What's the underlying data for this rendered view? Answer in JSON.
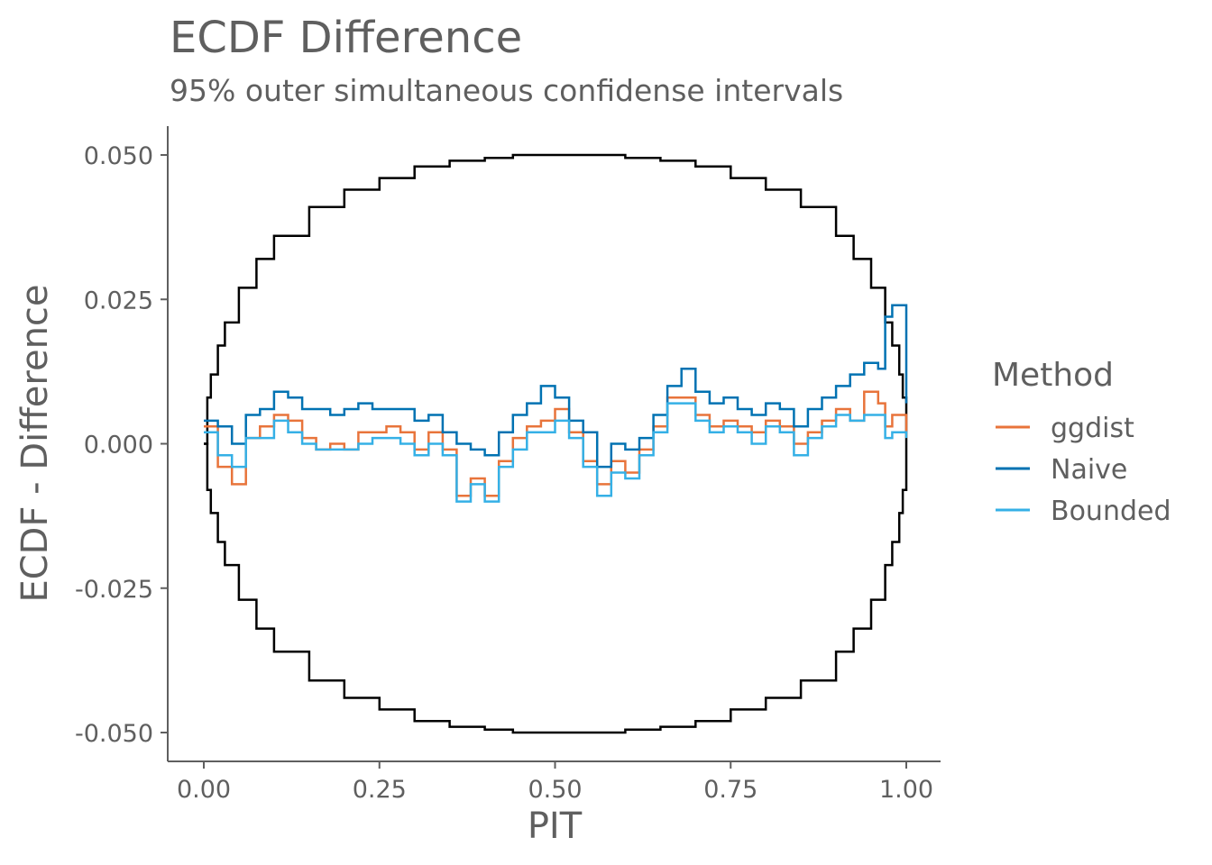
{
  "chart_data": {
    "type": "line",
    "title": "ECDF Difference",
    "subtitle": "95% outer simultaneous confidense intervals",
    "xlabel": "PIT",
    "ylabel": "ECDF - Difference",
    "xlim": [
      0,
      1
    ],
    "ylim": [
      -0.055,
      0.055
    ],
    "x_ticks": [
      0.0,
      0.25,
      0.5,
      0.75,
      1.0
    ],
    "x_tick_labels": [
      "0.00",
      "0.25",
      "0.50",
      "0.75",
      "1.00"
    ],
    "y_ticks": [
      -0.05,
      -0.025,
      0.0,
      0.025,
      0.05
    ],
    "y_tick_labels": [
      "-0.050",
      "-0.025",
      "0.000",
      "0.025",
      "0.050"
    ],
    "grid": false,
    "legend": {
      "title": "Method",
      "position": "right"
    },
    "envelope": {
      "color": "#000000",
      "description_shape": "stepped ellipse, ±0.05 at center, 0 at ends",
      "x": [
        0.0,
        0.005,
        0.01,
        0.02,
        0.03,
        0.05,
        0.075,
        0.1,
        0.15,
        0.2,
        0.25,
        0.3,
        0.35,
        0.4,
        0.44,
        0.5,
        0.56,
        0.6,
        0.65,
        0.7,
        0.75,
        0.8,
        0.85,
        0.9,
        0.925,
        0.95,
        0.97,
        0.98,
        0.99,
        0.995,
        1.0
      ],
      "upper": [
        0.0,
        0.008,
        0.012,
        0.017,
        0.021,
        0.027,
        0.032,
        0.036,
        0.041,
        0.044,
        0.046,
        0.048,
        0.049,
        0.0495,
        0.05,
        0.05,
        0.05,
        0.0495,
        0.049,
        0.048,
        0.046,
        0.044,
        0.041,
        0.036,
        0.032,
        0.027,
        0.021,
        0.017,
        0.012,
        0.008,
        0.0
      ],
      "lower": [
        0.0,
        -0.008,
        -0.012,
        -0.017,
        -0.021,
        -0.027,
        -0.032,
        -0.036,
        -0.041,
        -0.044,
        -0.046,
        -0.048,
        -0.049,
        -0.0495,
        -0.05,
        -0.05,
        -0.05,
        -0.0495,
        -0.049,
        -0.048,
        -0.046,
        -0.044,
        -0.041,
        -0.036,
        -0.032,
        -0.027,
        -0.021,
        -0.017,
        -0.012,
        -0.008,
        0.0
      ]
    },
    "x": [
      0.0,
      0.02,
      0.04,
      0.06,
      0.08,
      0.1,
      0.12,
      0.14,
      0.16,
      0.18,
      0.2,
      0.22,
      0.24,
      0.26,
      0.28,
      0.3,
      0.32,
      0.34,
      0.36,
      0.38,
      0.4,
      0.42,
      0.44,
      0.46,
      0.48,
      0.5,
      0.52,
      0.54,
      0.56,
      0.58,
      0.6,
      0.62,
      0.64,
      0.66,
      0.68,
      0.7,
      0.72,
      0.74,
      0.76,
      0.78,
      0.8,
      0.82,
      0.84,
      0.86,
      0.88,
      0.9,
      0.92,
      0.94,
      0.96,
      0.97,
      0.98,
      1.0
    ],
    "series": [
      {
        "name": "ggdist",
        "color": "#E8743B",
        "values": [
          0.003,
          -0.004,
          -0.007,
          0.001,
          0.003,
          0.005,
          0.004,
          0.001,
          -0.001,
          0.0,
          -0.001,
          0.002,
          0.002,
          0.003,
          0.002,
          -0.001,
          0.002,
          -0.001,
          -0.009,
          -0.006,
          -0.009,
          -0.003,
          0.001,
          0.003,
          0.004,
          0.006,
          0.002,
          -0.003,
          -0.007,
          -0.003,
          -0.005,
          -0.001,
          0.003,
          0.008,
          0.008,
          0.005,
          0.003,
          0.004,
          0.003,
          0.002,
          0.004,
          0.003,
          0.0,
          0.002,
          0.004,
          0.006,
          0.004,
          0.009,
          0.007,
          0.003,
          0.005,
          0.001
        ]
      },
      {
        "name": "Naive",
        "color": "#0072B2",
        "values": [
          0.004,
          0.003,
          0.0,
          0.005,
          0.006,
          0.009,
          0.008,
          0.006,
          0.006,
          0.005,
          0.006,
          0.007,
          0.006,
          0.006,
          0.006,
          0.004,
          0.005,
          0.002,
          0.0,
          -0.001,
          -0.002,
          0.002,
          0.005,
          0.007,
          0.01,
          0.008,
          0.004,
          0.002,
          -0.004,
          0.0,
          -0.001,
          0.001,
          0.005,
          0.01,
          0.013,
          0.009,
          0.007,
          0.008,
          0.006,
          0.005,
          0.007,
          0.006,
          0.003,
          0.006,
          0.008,
          0.01,
          0.012,
          0.014,
          0.013,
          0.022,
          0.024,
          0.007
        ]
      },
      {
        "name": "Bounded",
        "color": "#35B0E6",
        "values": [
          0.002,
          -0.002,
          -0.004,
          0.001,
          0.001,
          0.004,
          0.002,
          0.0,
          -0.001,
          -0.001,
          -0.001,
          0.0,
          0.001,
          0.001,
          0.0,
          -0.002,
          0.0,
          -0.002,
          -0.01,
          -0.007,
          -0.01,
          -0.004,
          -0.001,
          0.002,
          0.002,
          0.004,
          0.001,
          -0.004,
          -0.009,
          -0.005,
          -0.006,
          -0.002,
          0.002,
          0.007,
          0.007,
          0.004,
          0.002,
          0.003,
          0.002,
          0.0,
          0.003,
          0.002,
          -0.002,
          0.001,
          0.003,
          0.005,
          0.004,
          0.005,
          0.005,
          0.001,
          0.002,
          0.001
        ]
      }
    ]
  }
}
